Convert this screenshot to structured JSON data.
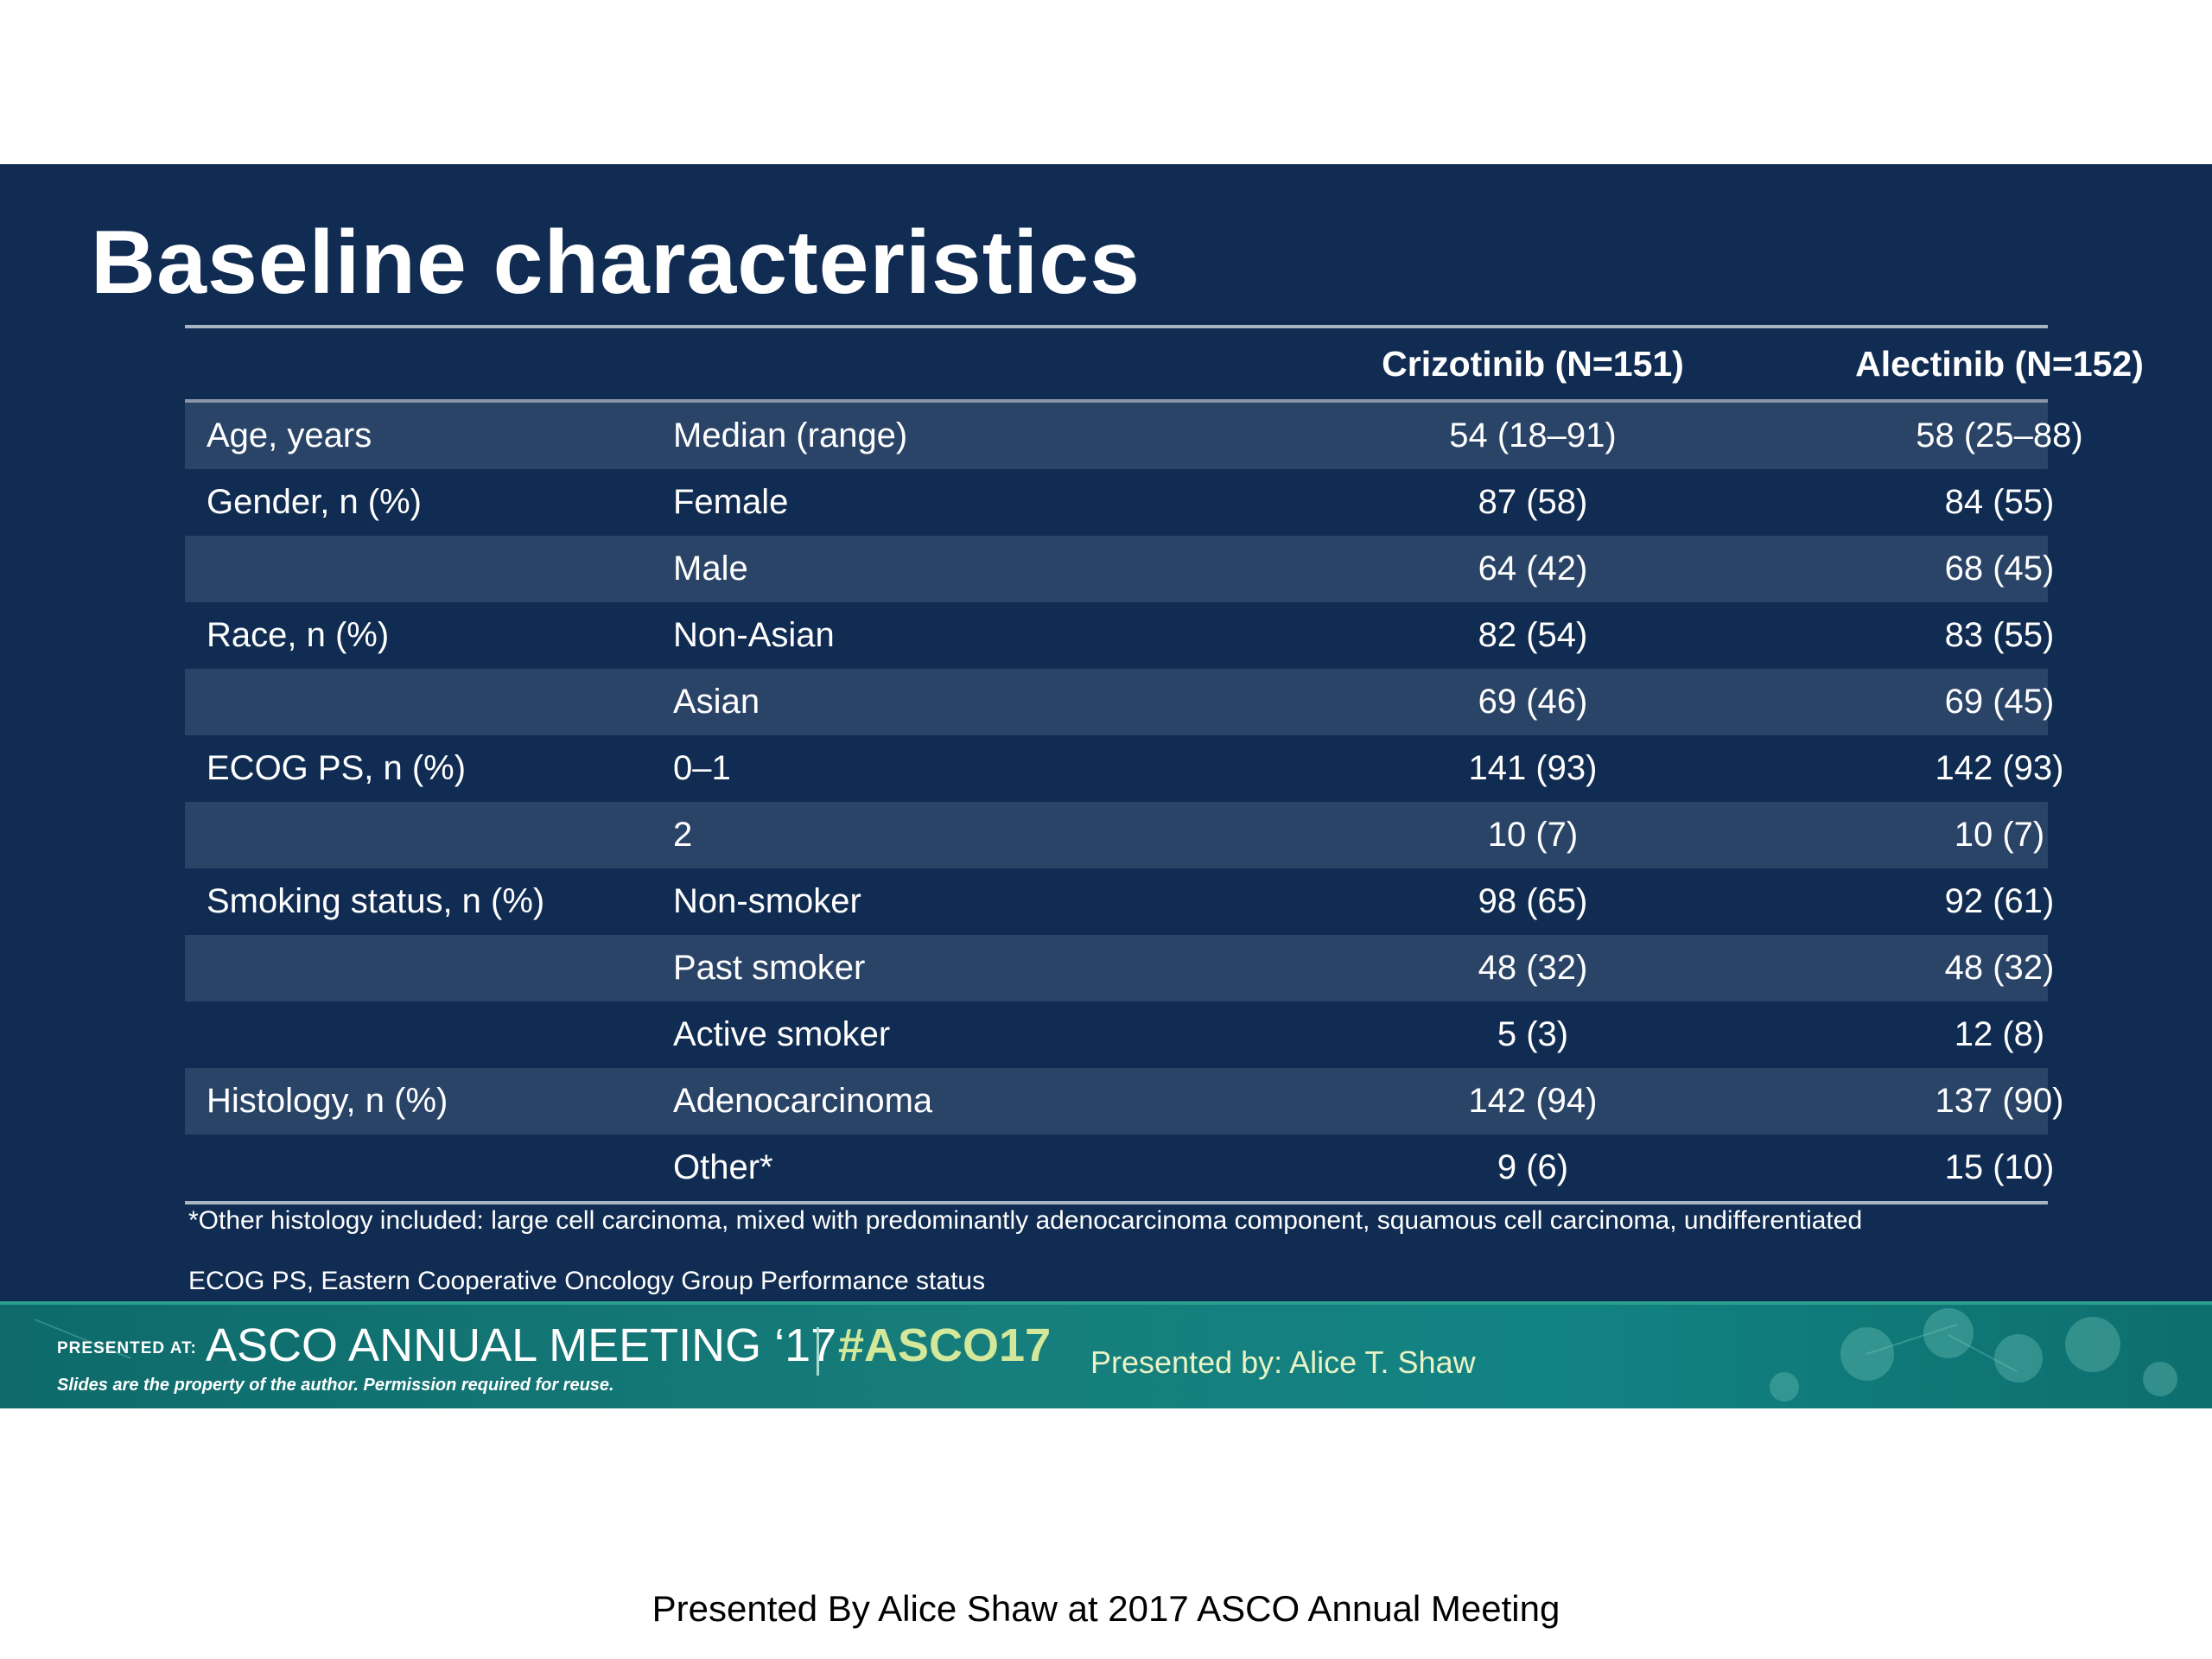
{
  "slide": {
    "title": "Baseline characteristics",
    "table": {
      "headers": [
        "",
        "",
        "Crizotinib (N=151)",
        "Alectinib  (N=152)"
      ],
      "rows": [
        [
          "Age, years",
          "Median (range)",
          "54 (18–91)",
          "58 (25–88)"
        ],
        [
          "Gender, n (%)",
          "Female",
          "87 (58)",
          "84 (55)"
        ],
        [
          "",
          "Male",
          "64 (42)",
          "68 (45)"
        ],
        [
          "Race, n (%)",
          "Non-Asian",
          "82 (54)",
          "83 (55)"
        ],
        [
          "",
          "Asian",
          "69 (46)",
          "69 (45)"
        ],
        [
          "ECOG PS, n (%)",
          "0–1",
          "141 (93)",
          "142 (93)"
        ],
        [
          "",
          "2",
          "10 (7)",
          "10 (7)"
        ],
        [
          "Smoking status, n (%)",
          "Non-smoker",
          "98 (65)",
          "92 (61)"
        ],
        [
          "",
          "Past smoker",
          "48 (32)",
          "48 (32)"
        ],
        [
          "",
          "Active smoker",
          "5 (3)",
          "12 (8)"
        ],
        [
          "Histology, n (%)",
          "Adenocarcinoma",
          "142 (94)",
          "137 (90)"
        ],
        [
          "",
          "Other*",
          "9 (6)",
          "15 (10)"
        ]
      ]
    },
    "footnote": "*Other histology included:  large cell carcinoma,  mixed with  predominantly  adenocarcinoma  component,  squamous cell carcinoma,  undifferentiated",
    "abbreviation": "ECOG PS, Eastern Cooperative Oncology Group Performance status"
  },
  "banner": {
    "presented_at": "PRESENTED AT:",
    "meeting": "ASCO ANNUAL MEETING ‘17",
    "hashtag": "#ASCO17",
    "disclaimer": "Slides are the property of the author. Permission required for reuse.",
    "presenter": "Presented by:  Alice T. Shaw"
  },
  "caption": "Presented By Alice Shaw at 2017 ASCO Annual Meeting",
  "colors": {
    "slide_background": "#112c52",
    "row_stripe": "#2a4468",
    "banner_teal": "#167e7c",
    "hashtag_green": "#d3e89a"
  }
}
